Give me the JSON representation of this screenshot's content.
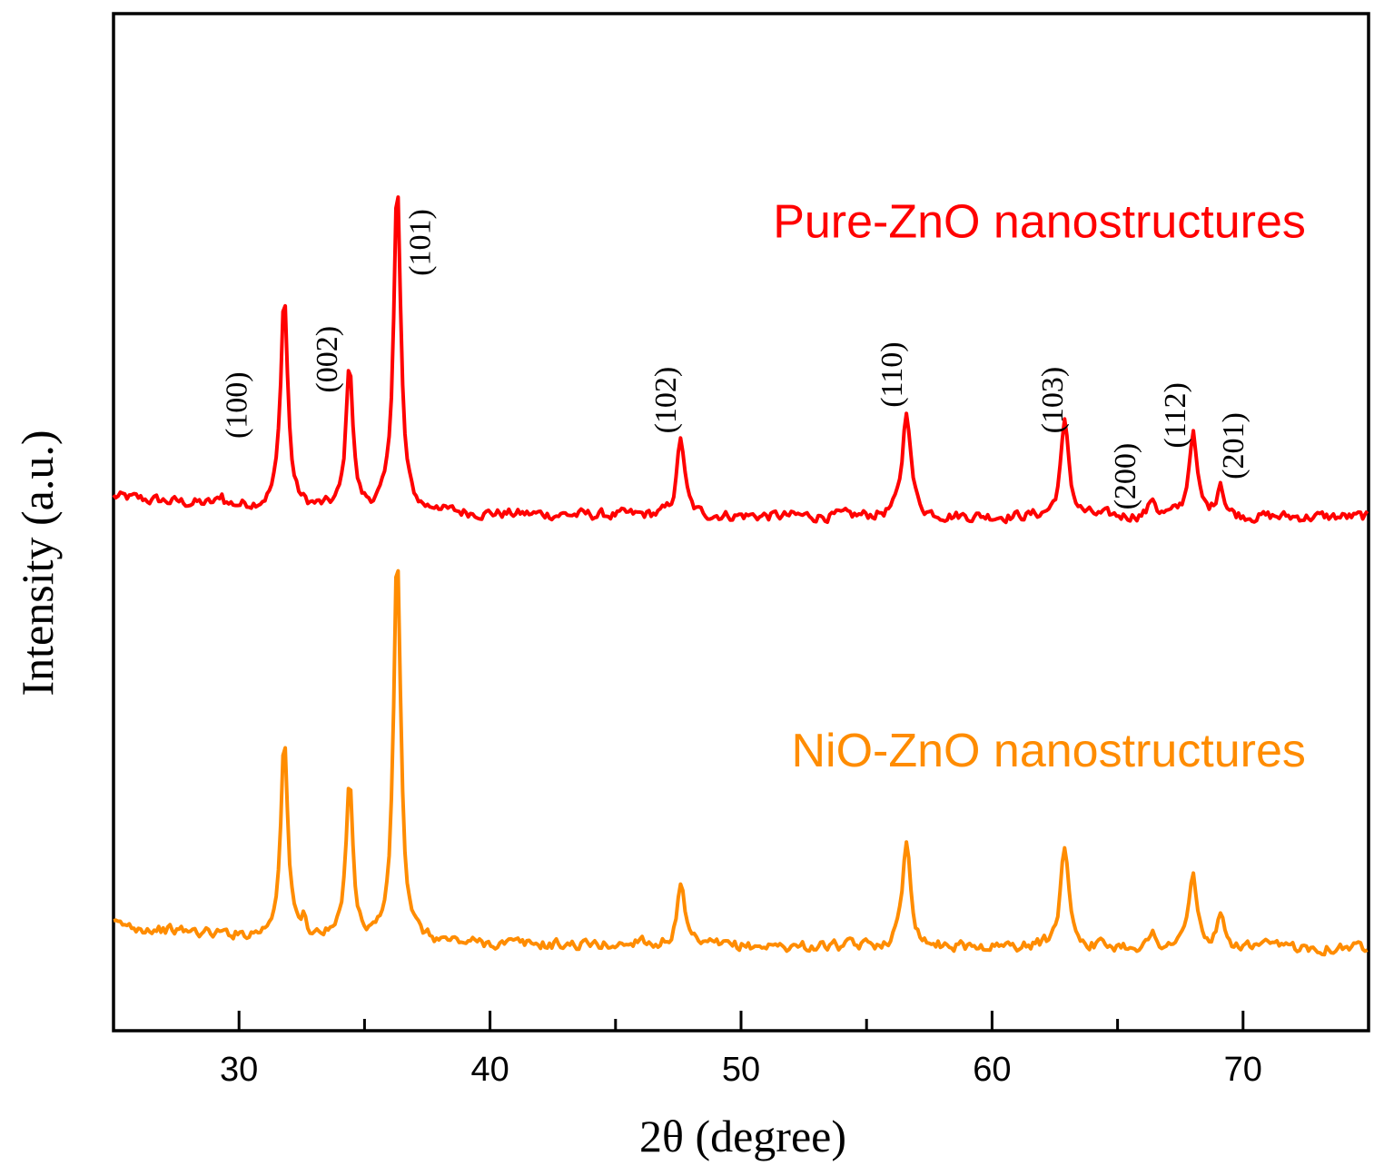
{
  "chart_data": {
    "type": "line",
    "title": "",
    "xlabel": "2θ (degree)",
    "ylabel": "Intensity (a.u.)",
    "xlim": [
      25,
      75
    ],
    "ylim": [
      0,
      100
    ],
    "x_ticks": [
      30,
      40,
      50,
      60,
      70
    ],
    "x_tick_labels": [
      "30",
      "40",
      "50",
      "60",
      "70"
    ],
    "grid": false,
    "series": [
      {
        "name": "Pure-ZnO nanostructures",
        "color": "#ff0000",
        "baseline": 50.5,
        "start_offset": 2.0,
        "peaks": [
          {
            "x": 29.3,
            "h": 1.0,
            "w": 0.1
          },
          {
            "x": 31.8,
            "h": 21.0,
            "w": 0.17
          },
          {
            "x": 34.4,
            "h": 14.5,
            "w": 0.16
          },
          {
            "x": 36.3,
            "h": 32.5,
            "w": 0.17
          },
          {
            "x": 37.9,
            "h": 0.6,
            "w": 0.12
          },
          {
            "x": 47.6,
            "h": 7.7,
            "w": 0.18
          },
          {
            "x": 56.6,
            "h": 10.5,
            "w": 0.2
          },
          {
            "x": 62.9,
            "h": 9.1,
            "w": 0.2
          },
          {
            "x": 66.4,
            "h": 1.8,
            "w": 0.15
          },
          {
            "x": 68.0,
            "h": 8.3,
            "w": 0.19
          },
          {
            "x": 69.1,
            "h": 3.4,
            "w": 0.16
          }
        ]
      },
      {
        "name": "NiO-ZnO nanostructures",
        "color": "#ff8c00",
        "baseline": 8.2,
        "start_offset": 2.2,
        "peaks": [
          {
            "x": 31.8,
            "h": 19.5,
            "w": 0.17
          },
          {
            "x": 32.6,
            "h": 1.5,
            "w": 0.1
          },
          {
            "x": 34.4,
            "h": 16.0,
            "w": 0.16
          },
          {
            "x": 36.3,
            "h": 38.5,
            "w": 0.17
          },
          {
            "x": 46.0,
            "h": 1.0,
            "w": 0.15
          },
          {
            "x": 47.6,
            "h": 5.8,
            "w": 0.18
          },
          {
            "x": 56.6,
            "h": 10.5,
            "w": 0.2
          },
          {
            "x": 62.9,
            "h": 10.0,
            "w": 0.2
          },
          {
            "x": 66.4,
            "h": 1.1,
            "w": 0.15
          },
          {
            "x": 68.0,
            "h": 7.1,
            "w": 0.19
          },
          {
            "x": 69.1,
            "h": 2.7,
            "w": 0.16
          }
        ]
      }
    ],
    "peak_labels": [
      {
        "text": "(100)",
        "x": 30.3,
        "y": 61.5
      },
      {
        "text": "(002)",
        "x": 33.9,
        "y": 66.0
      },
      {
        "text": "(101)",
        "x": 37.6,
        "y": 77.5
      },
      {
        "text": "(102)",
        "x": 47.4,
        "y": 62.0
      },
      {
        "text": "(110)",
        "x": 56.4,
        "y": 64.5
      },
      {
        "text": "(103)",
        "x": 62.8,
        "y": 62.0
      },
      {
        "text": "(200)",
        "x": 65.7,
        "y": 54.5
      },
      {
        "text": "(112)",
        "x": 67.7,
        "y": 60.5
      },
      {
        "text": "(201)",
        "x": 70.0,
        "y": 57.5
      }
    ],
    "series_labels": [
      {
        "text": "Pure-ZnO nanostructures",
        "color": "#ff0000",
        "x": 72.5,
        "y": 78.0
      },
      {
        "text": "NiO-ZnO nanostructures",
        "color": "#ff8c00",
        "x": 72.5,
        "y": 26.0
      }
    ]
  }
}
